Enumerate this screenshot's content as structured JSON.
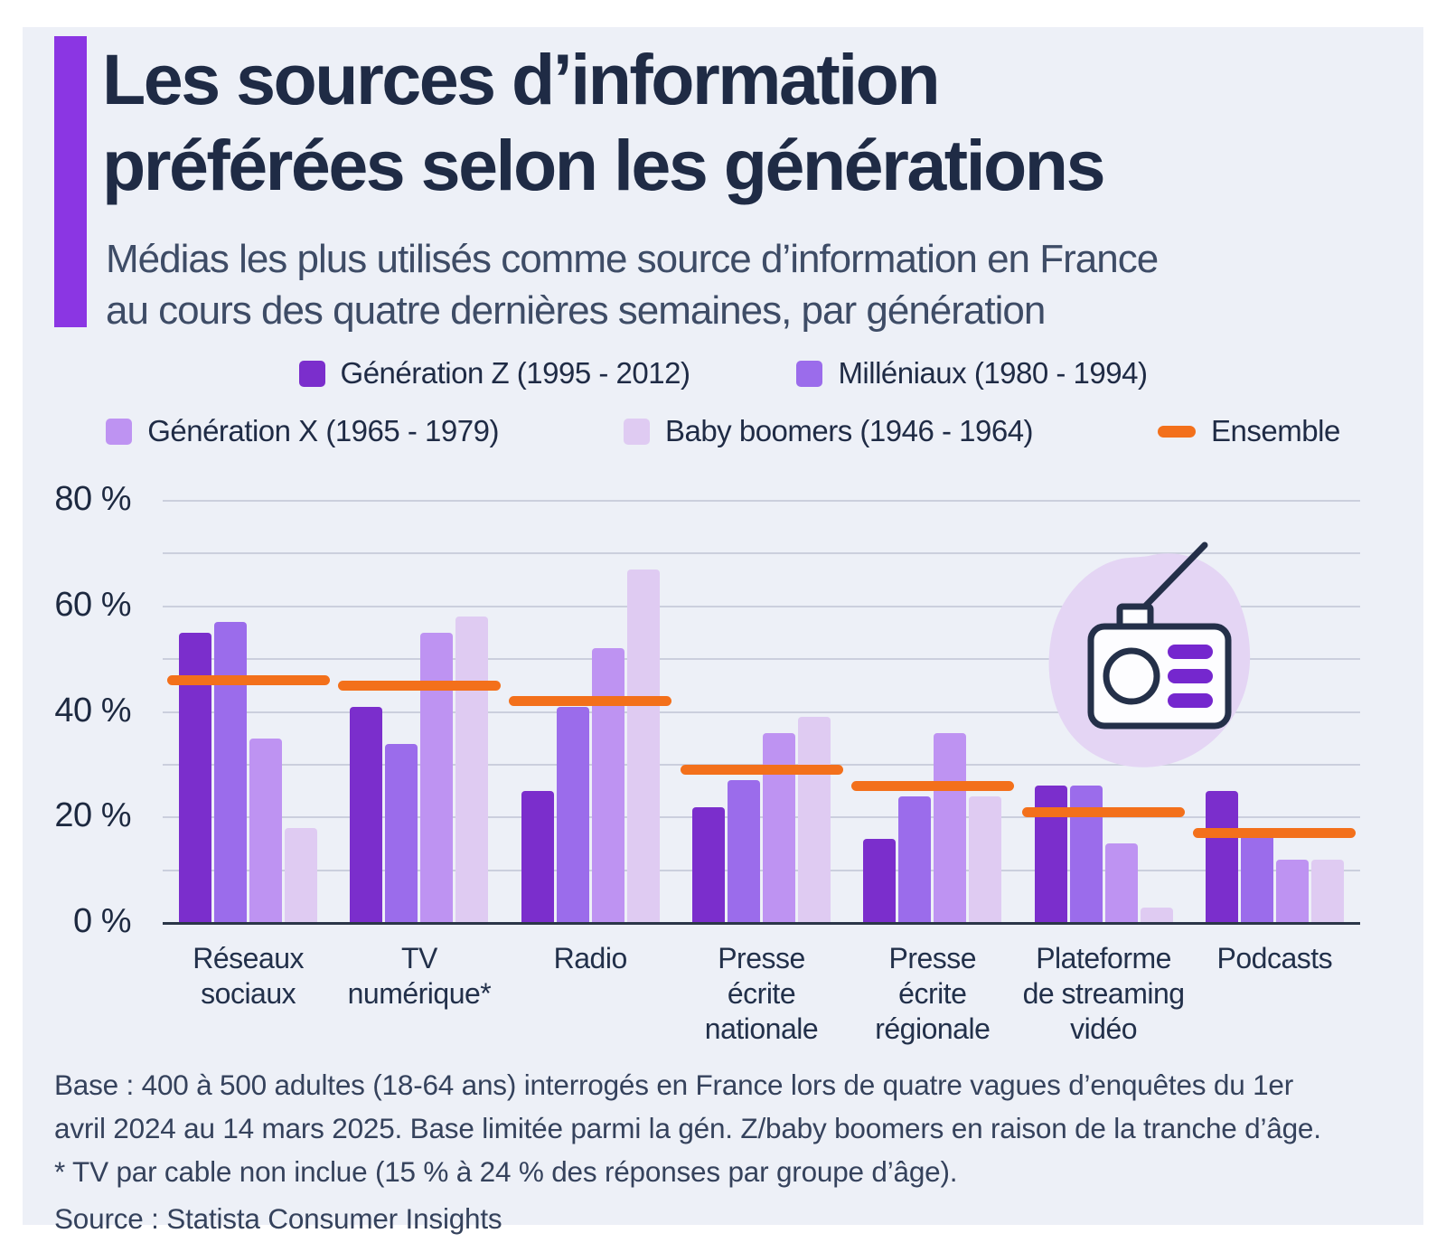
{
  "header": {
    "title_line1": "Les sources d’information",
    "title_line2": "préférées selon les générations",
    "subtitle_line1": "Médias les plus utilisés comme source d’information en France",
    "subtitle_line2": "au cours des quatre dernières semaines, par génération"
  },
  "colors": {
    "panel_background": "#EDF0F7",
    "accent_bar": "#8B36E3",
    "title_text": "#1F2B45",
    "subtitle_text": "#3E4C66",
    "gridline": "#CBCFDD",
    "axis_line": "#2B3648",
    "ensemble_orange": "#F3701B",
    "illustration_blob": "#E4D5F4",
    "illustration_stroke": "#243049",
    "illustration_purple": "#7527CE"
  },
  "chart_data": {
    "type": "bar",
    "title": "Les sources d’information préférées selon les générations",
    "subtitle": "Médias les plus utilisés comme source d’information en France au cours des quatre dernières semaines, par génération",
    "unit": "%",
    "ylim": [
      0,
      80
    ],
    "grid_step": 10,
    "legend_position": "top",
    "yticks": [
      {
        "value": 0,
        "label": "0 %"
      },
      {
        "value": 20,
        "label": "20 %"
      },
      {
        "value": 40,
        "label": "40 %"
      },
      {
        "value": 60,
        "label": "60 %"
      },
      {
        "value": 80,
        "label": "80 %"
      }
    ],
    "categories": [
      [
        "Réseaux",
        "sociaux"
      ],
      [
        "TV",
        "numérique*"
      ],
      [
        "Radio"
      ],
      [
        "Presse",
        "écrite",
        "nationale"
      ],
      [
        "Presse",
        "écrite",
        "régionale"
      ],
      [
        "Plateforme",
        "de streaming",
        "vidéo"
      ],
      [
        "Podcasts"
      ]
    ],
    "series": [
      {
        "name": "Génération Z (1995 - 2012)",
        "color": "#7B2ECC",
        "values": [
          55,
          41,
          25,
          22,
          16,
          26,
          25
        ]
      },
      {
        "name": "Milléniaux (1980 - 1994)",
        "color": "#9B6CEB",
        "values": [
          57,
          34,
          41,
          27,
          24,
          26,
          18
        ]
      },
      {
        "name": "Génération X (1965 - 1979)",
        "color": "#BE93F2",
        "values": [
          35,
          55,
          52,
          36,
          36,
          15,
          12
        ]
      },
      {
        "name": "Baby boomers (1946 - 1964)",
        "color": "#DFCBF2",
        "values": [
          18,
          58,
          67,
          39,
          24,
          3,
          12
        ]
      }
    ],
    "ensemble": {
      "name": "Ensemble",
      "color": "#F3701B",
      "values": [
        46,
        45,
        42,
        29,
        26,
        21,
        17
      ]
    }
  },
  "footnotes": {
    "line1": "Base : 400 à 500 adultes (18-64 ans) interrogés en France lors de quatre vagues d’enquêtes du 1er",
    "line2": "avril 2024 au 14 mars 2025. Base limitée parmi la gén. Z/baby boomers en raison de la tranche d’âge.",
    "line3": "* TV par cable non inclue (15 % à 24 % des réponses par groupe d’âge)."
  },
  "source": "Source : Statista Consumer Insights"
}
